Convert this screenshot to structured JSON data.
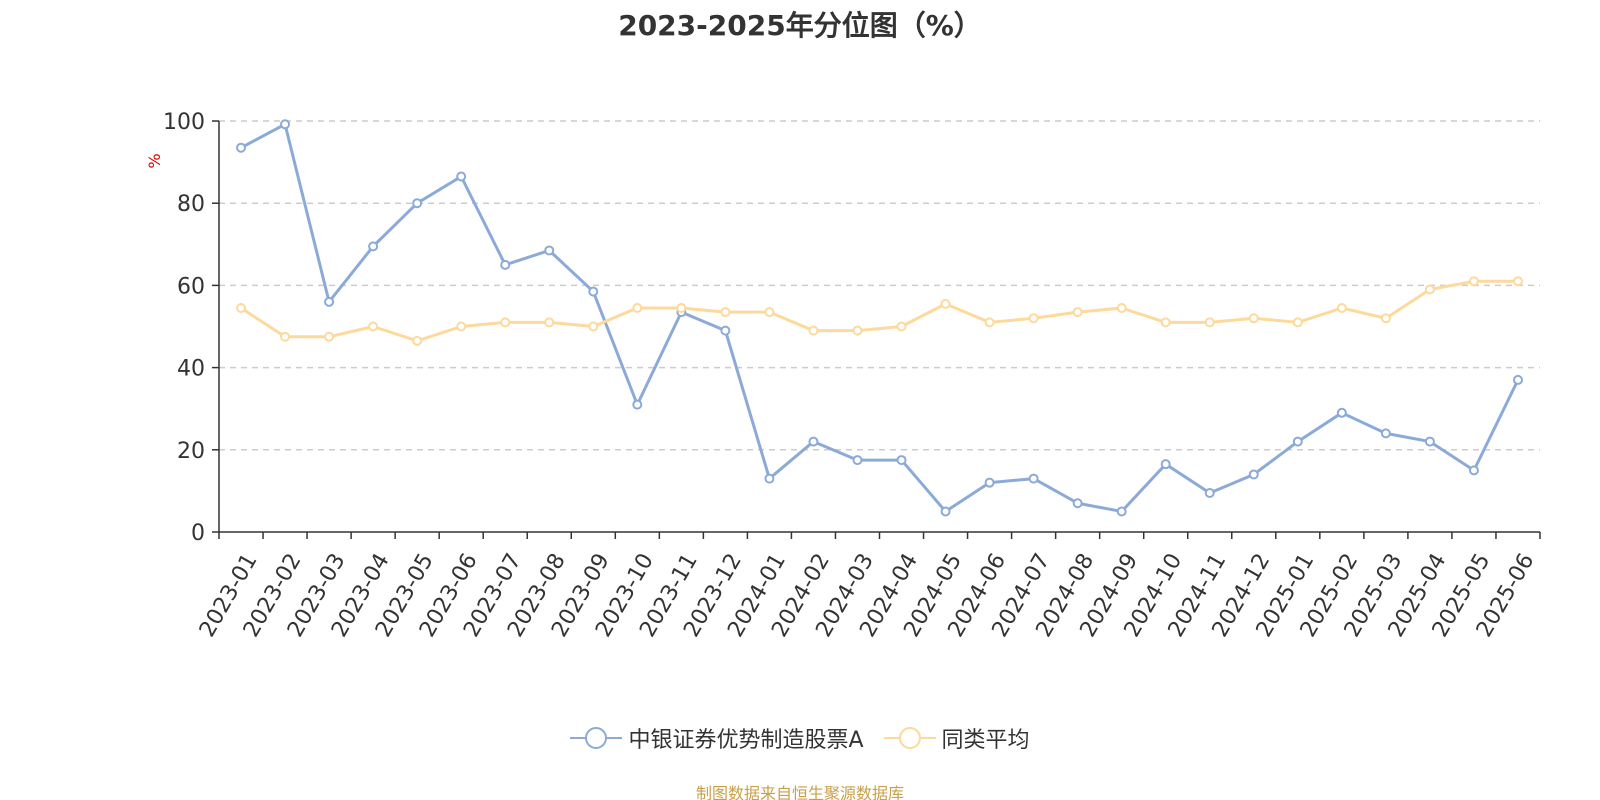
{
  "chart_data": {
    "type": "line",
    "title": "2023-2025年分位图（%）",
    "ylabel": "%",
    "xlabel": "",
    "ylim": [
      0,
      100
    ],
    "yticks": [
      0,
      20,
      40,
      60,
      80,
      100
    ],
    "grid": true,
    "legend_position": "bottom",
    "categories": [
      "2023-01",
      "2023-02",
      "2023-03",
      "2023-04",
      "2023-05",
      "2023-06",
      "2023-07",
      "2023-08",
      "2023-09",
      "2023-10",
      "2023-11",
      "2023-12",
      "2024-01",
      "2024-02",
      "2024-03",
      "2024-04",
      "2024-05",
      "2024-06",
      "2024-07",
      "2024-08",
      "2024-09",
      "2024-10",
      "2024-11",
      "2024-12",
      "2025-01",
      "2025-02",
      "2025-03",
      "2025-04",
      "2025-05",
      "2025-06"
    ],
    "series": [
      {
        "name": "中银证券优势制造股票A",
        "color": "#8caad8",
        "values": [
          93.5,
          99.2,
          56.0,
          69.5,
          80.0,
          86.5,
          65.0,
          68.5,
          58.5,
          31.0,
          53.5,
          49.0,
          13.0,
          22.0,
          17.5,
          17.5,
          5.0,
          12.0,
          13.0,
          7.0,
          5.0,
          16.5,
          9.5,
          14.0,
          22.0,
          29.0,
          24.0,
          22.0,
          15.0,
          37.0
        ]
      },
      {
        "name": "同类平均",
        "color": "#fdd99b",
        "values": [
          54.5,
          47.5,
          47.5,
          50.0,
          46.5,
          50.0,
          51.0,
          51.0,
          50.0,
          54.5,
          54.5,
          53.5,
          53.5,
          49.0,
          49.0,
          50.0,
          55.5,
          51.0,
          52.0,
          53.5,
          54.5,
          51.0,
          51.0,
          52.0,
          51.0,
          54.5,
          52.0,
          59.0,
          61.0,
          61.0
        ]
      }
    ]
  },
  "source_note": "制图数据来自恒生聚源数据库"
}
